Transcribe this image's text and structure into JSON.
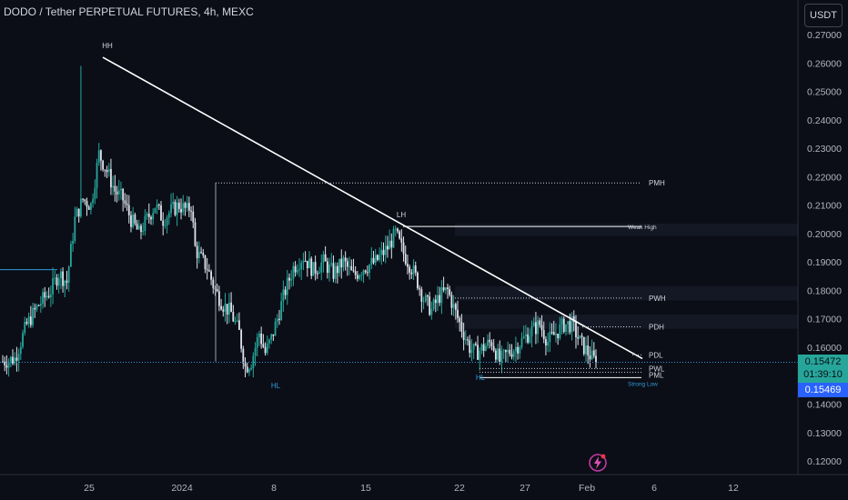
{
  "header": {
    "title": "DODO / Tether PERPETUAL FUTURES, 4h, MEXC",
    "currency": "USDT"
  },
  "price_tags": {
    "last_price": "0.15472",
    "countdown": "01:39:10",
    "crosshair_price": "0.15469"
  },
  "colors": {
    "background": "#0b0e17",
    "up_candle": "#26a69a",
    "down_candle": "#dfe3eb",
    "trendline": "#ffffff",
    "level_line": "#c8ccd4",
    "price_line": "#2f9bd6",
    "last_price_tag": "#26a69a",
    "crosshair_tag": "#2962ff",
    "axis_text": "#b2b5be"
  },
  "icons": {
    "logo": "lightning-bolt-icon"
  },
  "chart_data": {
    "type": "candlestick",
    "y_scale": "linear",
    "ylim": [
      0.115,
      0.272
    ],
    "y_ticks": [
      "0.27000",
      "0.26000",
      "0.25000",
      "0.24000",
      "0.23000",
      "0.22000",
      "0.21000",
      "0.20000",
      "0.19000",
      "0.18000",
      "0.17000",
      "0.16000",
      "0.14000",
      "0.13000",
      "0.12000"
    ],
    "x_ticks": [
      "25",
      "2024",
      "8",
      "15",
      "22",
      "27",
      "Feb",
      "6",
      "12"
    ],
    "grid": false,
    "annotations": [
      {
        "text": "HH",
        "price": 0.262
      },
      {
        "text": "LH",
        "price": 0.2025
      },
      {
        "text": "HL",
        "price": 0.15
      },
      {
        "text": "HL",
        "price": 0.153
      }
    ],
    "levels": [
      {
        "label": "PMH",
        "value": 0.2178
      },
      {
        "label": "Weak High",
        "value": 0.2025
      },
      {
        "label": "PWH",
        "value": 0.1773
      },
      {
        "label": "PDH",
        "value": 0.1672
      },
      {
        "label": "PDL",
        "value": 0.1573
      },
      {
        "label": "PWL",
        "value": 0.1525
      },
      {
        "label": "PML",
        "value": 0.1512
      },
      {
        "label": "Strong Low",
        "value": 0.1493
      }
    ],
    "trendline": [
      {
        "price": 0.262
      },
      {
        "price": 0.156
      }
    ],
    "last_price": 0.15472,
    "crosshair_price": 0.15469,
    "close_path": [
      [
        0,
        0.155
      ],
      [
        6,
        0.156
      ],
      [
        12,
        0.168
      ],
      [
        18,
        0.175
      ],
      [
        24,
        0.18
      ],
      [
        28,
        0.186
      ],
      [
        32,
        0.183
      ],
      [
        36,
        0.205
      ],
      [
        40,
        0.212
      ],
      [
        44,
        0.21
      ],
      [
        48,
        0.228
      ],
      [
        52,
        0.222
      ],
      [
        56,
        0.215
      ],
      [
        60,
        0.212
      ],
      [
        64,
        0.205
      ],
      [
        68,
        0.2
      ],
      [
        72,
        0.205
      ],
      [
        76,
        0.21
      ],
      [
        80,
        0.205
      ],
      [
        84,
        0.208
      ],
      [
        88,
        0.21
      ],
      [
        92,
        0.208
      ],
      [
        94,
        0.21
      ],
      [
        96,
        0.195
      ],
      [
        98,
        0.192
      ],
      [
        102,
        0.188
      ],
      [
        106,
        0.18
      ],
      [
        110,
        0.175
      ],
      [
        114,
        0.172
      ],
      [
        118,
        0.165
      ],
      [
        121,
        0.153
      ],
      [
        124,
        0.155
      ],
      [
        128,
        0.165
      ],
      [
        131,
        0.158
      ],
      [
        134,
        0.163
      ],
      [
        137,
        0.17
      ],
      [
        141,
        0.18
      ],
      [
        145,
        0.188
      ],
      [
        150,
        0.192
      ],
      [
        155,
        0.187
      ],
      [
        160,
        0.19
      ],
      [
        165,
        0.186
      ],
      [
        170,
        0.19
      ],
      [
        175,
        0.185
      ],
      [
        180,
        0.188
      ],
      [
        186,
        0.19
      ],
      [
        192,
        0.195
      ],
      [
        196,
        0.2
      ],
      [
        200,
        0.193
      ],
      [
        204,
        0.188
      ],
      [
        207,
        0.183
      ],
      [
        210,
        0.177
      ],
      [
        214,
        0.173
      ],
      [
        218,
        0.178
      ],
      [
        222,
        0.18
      ],
      [
        226,
        0.172
      ],
      [
        230,
        0.165
      ],
      [
        233,
        0.16
      ],
      [
        236,
        0.158
      ],
      [
        240,
        0.16
      ],
      [
        244,
        0.162
      ],
      [
        248,
        0.155
      ],
      [
        252,
        0.158
      ],
      [
        256,
        0.16
      ],
      [
        260,
        0.163
      ],
      [
        264,
        0.166
      ],
      [
        268,
        0.168
      ],
      [
        272,
        0.162
      ],
      [
        276,
        0.165
      ],
      [
        280,
        0.168
      ],
      [
        284,
        0.168
      ],
      [
        288,
        0.162
      ],
      [
        292,
        0.158
      ],
      [
        296,
        0.1547
      ]
    ]
  }
}
